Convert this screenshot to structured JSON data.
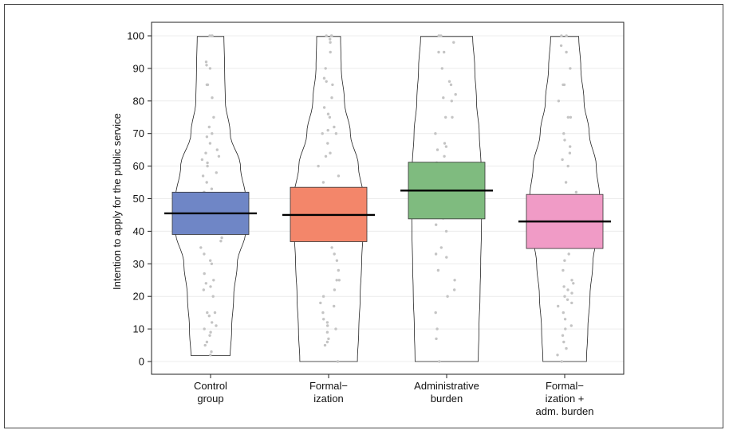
{
  "chart_data": {
    "type": "violin-box",
    "ylabel": "Intention to apply for the public service",
    "xlabel": "",
    "ylim": [
      0,
      100
    ],
    "yticks": [
      0,
      10,
      20,
      30,
      40,
      50,
      60,
      70,
      80,
      90,
      100
    ],
    "grid": true,
    "categories": [
      [
        "Control",
        "group"
      ],
      [
        "Formal−",
        "ization"
      ],
      [
        "Administrative",
        "burden"
      ],
      [
        "Formal−",
        "ization +",
        "adm. burden"
      ]
    ],
    "groups": [
      {
        "color": "#6f86c6",
        "mean": 45.5,
        "ci_low": 39.0,
        "ci_high": 52.0,
        "range": [
          1.8,
          99.8
        ],
        "density": [
          [
            0,
            0.55
          ],
          [
            10,
            0.6
          ],
          [
            20,
            0.66
          ],
          [
            30,
            0.76
          ],
          [
            40,
            1.0
          ],
          [
            50,
            1.0
          ],
          [
            60,
            0.85
          ],
          [
            70,
            0.56
          ],
          [
            80,
            0.42
          ],
          [
            90,
            0.4
          ],
          [
            100,
            0.38
          ]
        ],
        "points": [
          2,
          3,
          5,
          6,
          8,
          9,
          10,
          11,
          12,
          14,
          15,
          15,
          20,
          22,
          23,
          24,
          25,
          27,
          30,
          31,
          33,
          35,
          37,
          38,
          40,
          41,
          42,
          42,
          44,
          45,
          46,
          47,
          48,
          50,
          51,
          52,
          53,
          55,
          57,
          58,
          60,
          61,
          62,
          63,
          64,
          65,
          67,
          69,
          70,
          72,
          75,
          81,
          85,
          85,
          90,
          91,
          92,
          100,
          100,
          100
        ]
      },
      {
        "color": "#f3866a",
        "mean": 45.0,
        "ci_low": 36.8,
        "ci_high": 53.5,
        "range": [
          0,
          99.8
        ],
        "density": [
          [
            0,
            0.82
          ],
          [
            10,
            0.86
          ],
          [
            20,
            0.9
          ],
          [
            30,
            0.94
          ],
          [
            40,
            0.98
          ],
          [
            50,
            1.0
          ],
          [
            60,
            0.85
          ],
          [
            70,
            0.62
          ],
          [
            80,
            0.45
          ],
          [
            90,
            0.36
          ],
          [
            100,
            0.34
          ]
        ],
        "points": [
          0,
          5,
          6,
          7,
          9,
          10,
          11,
          12,
          13,
          15,
          17,
          18,
          20,
          22,
          25,
          25,
          28,
          31,
          33,
          35,
          40,
          42,
          44,
          45,
          46,
          48,
          50,
          51,
          55,
          57,
          60,
          63,
          64,
          67,
          70,
          70,
          71,
          72,
          75,
          76,
          78,
          81,
          85,
          86,
          87,
          90,
          95,
          98,
          99,
          100,
          100,
          100
        ]
      },
      {
        "color": "#7fbb7f",
        "mean": 52.5,
        "ci_low": 43.8,
        "ci_high": 61.2,
        "range": [
          0,
          99.8
        ],
        "density": [
          [
            0,
            0.9
          ],
          [
            10,
            0.92
          ],
          [
            20,
            0.95
          ],
          [
            30,
            0.97
          ],
          [
            40,
            0.99
          ],
          [
            50,
            1.0
          ],
          [
            60,
            0.98
          ],
          [
            70,
            0.93
          ],
          [
            80,
            0.85
          ],
          [
            90,
            0.8
          ],
          [
            100,
            0.74
          ]
        ],
        "points": [
          0,
          7,
          10,
          15,
          20,
          22,
          25,
          28,
          32,
          33,
          35,
          40,
          42,
          44,
          45,
          47,
          50,
          52,
          55,
          57,
          60,
          61,
          63,
          65,
          66,
          67,
          70,
          75,
          75,
          80,
          81,
          82,
          85,
          86,
          90,
          95,
          95,
          98,
          100,
          100,
          100
        ]
      },
      {
        "color": "#f09bc6",
        "mean": 43.0,
        "ci_low": 34.7,
        "ci_high": 51.3,
        "range": [
          0,
          99.8
        ],
        "density": [
          [
            0,
            0.62
          ],
          [
            10,
            0.66
          ],
          [
            20,
            0.72
          ],
          [
            30,
            0.8
          ],
          [
            40,
            0.93
          ],
          [
            50,
            1.0
          ],
          [
            60,
            0.9
          ],
          [
            70,
            0.7
          ],
          [
            80,
            0.55
          ],
          [
            90,
            0.46
          ],
          [
            100,
            0.4
          ]
        ],
        "points": [
          0,
          2,
          4,
          6,
          8,
          10,
          11,
          13,
          15,
          17,
          18,
          19,
          20,
          21,
          22,
          23,
          24,
          25,
          28,
          31,
          33,
          36,
          40,
          42,
          44,
          45,
          47,
          48,
          50,
          52,
          55,
          60,
          62,
          64,
          66,
          68,
          70,
          75,
          75,
          80,
          85,
          85,
          90,
          95,
          97,
          100,
          100
        ]
      }
    ]
  }
}
